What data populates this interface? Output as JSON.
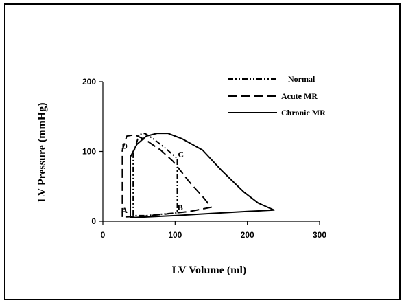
{
  "chart_data": {
    "type": "line",
    "title": "",
    "xlabel": "LV Volume (ml)",
    "ylabel": "LV Pressure (mmHg)",
    "xlim": [
      0,
      300
    ],
    "ylim": [
      0,
      200
    ],
    "xticks": [
      "0",
      "100",
      "200",
      "300"
    ],
    "yticks": [
      "0",
      "100",
      "200"
    ],
    "grid": false,
    "legend_position": "top-right",
    "series": [
      {
        "name": "Normal",
        "dash": "dash-dot-dot",
        "points": [
          [
            42,
            8
          ],
          [
            42,
            96
          ],
          [
            50,
            124
          ],
          [
            58,
            126
          ],
          [
            70,
            118
          ],
          [
            85,
            106
          ],
          [
            103,
            90
          ],
          [
            103,
            70
          ],
          [
            103,
            12
          ],
          [
            80,
            10
          ],
          [
            60,
            8
          ],
          [
            42,
            8
          ]
        ]
      },
      {
        "name": "Acute MR",
        "dash": "dash",
        "points": [
          [
            27,
            6
          ],
          [
            27,
            102
          ],
          [
            33,
            122
          ],
          [
            44,
            124
          ],
          [
            60,
            116
          ],
          [
            80,
            102
          ],
          [
            97,
            86
          ],
          [
            120,
            56
          ],
          [
            140,
            33
          ],
          [
            150,
            20
          ],
          [
            120,
            14
          ],
          [
            85,
            10
          ],
          [
            55,
            7
          ],
          [
            27,
            6
          ]
        ]
      },
      {
        "name": "Chronic MR",
        "dash": "solid",
        "points": [
          [
            38,
            5
          ],
          [
            38,
            92
          ],
          [
            47,
            110
          ],
          [
            60,
            122
          ],
          [
            75,
            126
          ],
          [
            90,
            126
          ],
          [
            110,
            118
          ],
          [
            138,
            102
          ],
          [
            165,
            72
          ],
          [
            195,
            42
          ],
          [
            215,
            26
          ],
          [
            237,
            16
          ],
          [
            200,
            14
          ],
          [
            150,
            11
          ],
          [
            100,
            8
          ],
          [
            60,
            6
          ],
          [
            38,
            5
          ]
        ]
      }
    ],
    "annotations": [
      {
        "label": "A",
        "x": 30,
        "y": 12
      },
      {
        "label": "B",
        "x": 107,
        "y": 16
      },
      {
        "label": "C",
        "x": 108,
        "y": 92
      },
      {
        "label": "D",
        "x": 30,
        "y": 104
      }
    ]
  }
}
